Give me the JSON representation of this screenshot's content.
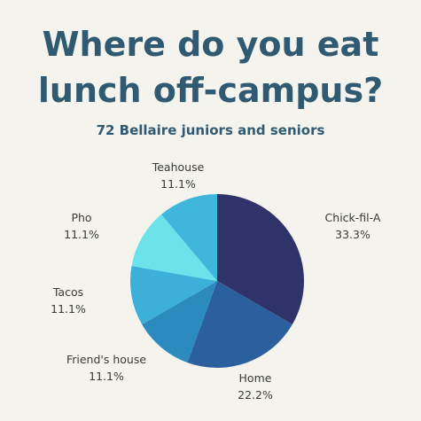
{
  "chart_data": {
    "type": "pie",
    "title_lines": [
      "Where do you eat",
      "lunch off-campus?"
    ],
    "subtitle": "72 Bellaire juniors and seniors",
    "slices": [
      {
        "label": "Chick-fil-A",
        "value": 33.3,
        "display": "33.3%",
        "color": "#2f336a"
      },
      {
        "label": "Home",
        "value": 22.2,
        "display": "22.2%",
        "color": "#2b5f9e"
      },
      {
        "label": "Friend's house",
        "value": 11.1,
        "display": "11.1%",
        "color": "#2b8bbf"
      },
      {
        "label": "Tacos",
        "value": 11.1,
        "display": "11.1%",
        "color": "#3cb0d9"
      },
      {
        "label": "Pho",
        "value": 11.1,
        "display": "11.1%",
        "color": "#6ce3eb"
      },
      {
        "label": "Teahouse",
        "value": 11.1,
        "display": "11.1%",
        "color": "#40b6dc"
      }
    ]
  }
}
